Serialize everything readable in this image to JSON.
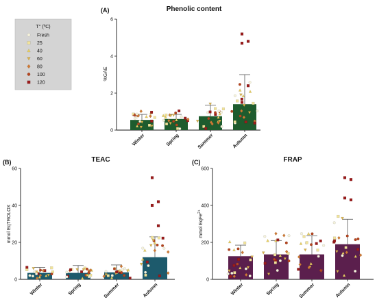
{
  "legend": {
    "title": "T° (ºC)",
    "entries": [
      {
        "label": "Fresh",
        "color": "#f5f2dc",
        "shape": "circle"
      },
      {
        "label": "25",
        "color": "#f1e39a",
        "shape": "square"
      },
      {
        "label": "40",
        "color": "#e8cf63",
        "shape": "triangle-up"
      },
      {
        "label": "60",
        "color": "#d9b24c",
        "shape": "triangle-down"
      },
      {
        "label": "80",
        "color": "#cf7a35",
        "shape": "diamond"
      },
      {
        "label": "100",
        "color": "#b5451f",
        "shape": "circle"
      },
      {
        "label": "120",
        "color": "#9a1b1b",
        "shape": "square"
      }
    ]
  },
  "chart_data": [
    {
      "panel": "(A)",
      "type": "bar",
      "title": "Phenolic content",
      "ylabel": "%GAE",
      "categories": [
        "Winter",
        "Spring",
        "Summer",
        "Autumn"
      ],
      "values": [
        0.55,
        0.6,
        0.75,
        1.4
      ],
      "error": [
        0.3,
        0.25,
        0.6,
        1.6
      ],
      "ylim": [
        0,
        6
      ],
      "yticks": [
        "0",
        "2",
        "4",
        "6"
      ],
      "bar_color": "#1e5c2e",
      "notable_points": [
        5.2,
        4.8,
        4.7,
        2.4,
        1.5
      ]
    },
    {
      "panel": "(B)",
      "type": "bar",
      "title": "TEAC",
      "ylabel": "mmol EqTROLOX",
      "categories": [
        "Winter",
        "Spring",
        "Summer",
        "Autumn"
      ],
      "values": [
        3.5,
        3.5,
        3.8,
        12
      ],
      "error": [
        3,
        4,
        4,
        11
      ],
      "ylim": [
        0,
        60
      ],
      "yticks": [
        "0",
        "20",
        "40",
        "60"
      ],
      "bar_color": "#1d5a6c",
      "notable_points": [
        55,
        42,
        40,
        29
      ]
    },
    {
      "panel": "(C)",
      "type": "bar",
      "title": "FRAP",
      "ylabel": "mmol EqFe",
      "ylabel_suffix": "2+",
      "categories": [
        "Winter",
        "Spring",
        "Summer",
        "Autumn"
      ],
      "values": [
        125,
        135,
        135,
        190
      ],
      "error": [
        60,
        75,
        100,
        135
      ],
      "ylim": [
        0,
        600
      ],
      "yticks": [
        "0",
        "200",
        "400",
        "600"
      ],
      "bar_color": "#5b1f4d",
      "notable_points": [
        550,
        540,
        440,
        430
      ]
    }
  ]
}
